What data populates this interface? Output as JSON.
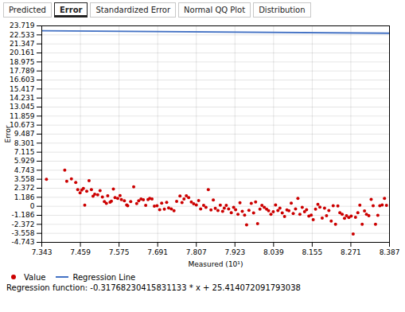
{
  "chart_data": {
    "type": "scatter",
    "tabs": [
      "Predicted",
      "Error",
      "Standardized Error",
      "Normal QQ Plot",
      "Distribution"
    ],
    "active_tab": "Error",
    "xlabel": "Measured (10¹)",
    "ylabel": "Error",
    "xlim": [
      7.343,
      8.387
    ],
    "ylim": [
      -4.743,
      23.719
    ],
    "xticks": [
      7.343,
      7.459,
      7.575,
      7.691,
      7.807,
      7.923,
      8.039,
      8.155,
      8.271,
      8.387
    ],
    "yticks": [
      -4.743,
      -3.558,
      -2.372,
      -1.186,
      0,
      1.186,
      2.372,
      3.558,
      4.743,
      5.929,
      7.115,
      8.301,
      9.487,
      10.673,
      11.859,
      13.045,
      14.231,
      15.417,
      16.603,
      17.789,
      18.975,
      20.161,
      21.347,
      22.533,
      23.719
    ],
    "grid": true,
    "legend": "lower left",
    "series": [
      {
        "name": "Value",
        "type": "scatter",
        "color": "#cc0000",
        "x": [
          7.357,
          7.412,
          7.418,
          7.432,
          7.445,
          7.451,
          7.458,
          7.463,
          7.468,
          7.472,
          7.478,
          7.485,
          7.492,
          7.497,
          7.502,
          7.511,
          7.518,
          7.525,
          7.531,
          7.537,
          7.541,
          7.548,
          7.552,
          7.558,
          7.563,
          7.571,
          7.578,
          7.582,
          7.591,
          7.598,
          7.601,
          7.61,
          7.619,
          7.628,
          7.634,
          7.641,
          7.648,
          7.655,
          7.662,
          7.667,
          7.674,
          7.681,
          7.689,
          7.697,
          7.703,
          7.711,
          7.718,
          7.724,
          7.732,
          7.74,
          7.748,
          7.758,
          7.764,
          7.77,
          7.777,
          7.784,
          7.792,
          7.799,
          7.807,
          7.814,
          7.82,
          7.829,
          7.836,
          7.843,
          7.851,
          7.858,
          7.864,
          7.872,
          7.879,
          7.886,
          7.891,
          7.897,
          7.904,
          7.912,
          7.919,
          7.925,
          7.932,
          7.938,
          7.945,
          7.952,
          7.958,
          7.965,
          7.972,
          7.979,
          7.985,
          7.991,
          7.998,
          8.004,
          8.011,
          8.018,
          8.024,
          8.031,
          8.038,
          8.045,
          8.052,
          8.058,
          8.065,
          8.072,
          8.079,
          8.085,
          8.092,
          8.098,
          8.105,
          8.112,
          8.118,
          8.125,
          8.132,
          8.138,
          8.145,
          8.152,
          8.158,
          8.165,
          8.172,
          8.178,
          8.185,
          8.192,
          8.198,
          8.205,
          8.212,
          8.218,
          8.225,
          8.232,
          8.238,
          8.245,
          8.252,
          8.258,
          8.265,
          8.272,
          8.278,
          8.285,
          8.292,
          8.298,
          8.305,
          8.312,
          8.318,
          8.325,
          8.332,
          8.338,
          8.345,
          8.352,
          8.358,
          8.365,
          8.372,
          8.378
        ],
        "values": [
          3.558,
          4.743,
          3.28,
          3.6,
          3.13,
          2.18,
          1.76,
          2.15,
          2.35,
          0.15,
          1.98,
          3.36,
          2.18,
          1.32,
          1.58,
          1.52,
          2.05,
          1.22,
          0.62,
          0.38,
          1.38,
          0.55,
          0.68,
          2.28,
          1.15,
          1.05,
          1.4,
          0.88,
          0.72,
          0.18,
          0.08,
          0.62,
          2.55,
          0.35,
          0.72,
          0.95,
          0.85,
          0.12,
          0.88,
          1.05,
          0.95,
          0.02,
          0.08,
          -0.45,
          0.42,
          -0.38,
          0.52,
          -0.22,
          -0.35,
          -0.58,
          0.65,
          1.35,
          0.48,
          0.95,
          1.38,
          1.15,
          0.58,
          0.32,
          0.18,
          0.75,
          -0.35,
          0.12,
          -0.15,
          2.18,
          -0.48,
          0.82,
          -0.28,
          -0.55,
          0.15,
          -0.65,
          -0.25,
          0.12,
          -0.35,
          -0.85,
          -0.15,
          -0.45,
          -1.05,
          0.45,
          -0.65,
          -1.15,
          -2.45,
          -0.52,
          0.38,
          -0.88,
          0.58,
          -2.28,
          -0.38,
          0.12,
          -0.15,
          -0.38,
          -0.58,
          -1.05,
          -0.72,
          0.18,
          -0.55,
          -0.25,
          -0.88,
          -1.35,
          -0.48,
          -0.58,
          0.42,
          -0.95,
          -0.35,
          1.05,
          -1.05,
          -0.15,
          -0.72,
          -0.45,
          -1.28,
          -1.15,
          -1.75,
          -0.38,
          0.25,
          -0.12,
          -1.55,
          -0.25,
          -1.25,
          -0.55,
          -1.95,
          0.08,
          -2.35,
          0.05,
          -0.85,
          -1.05,
          -1.58,
          -1.25,
          -1.48,
          -1.28,
          -3.65,
          -1.45,
          -0.85,
          0.15,
          -2.35,
          -0.62,
          -1.05,
          -1.25,
          0.92,
          0.08,
          -2.35,
          -1.18,
          0.08,
          0.18,
          1.05,
          0.12
        ]
      },
      {
        "name": "Regression Line",
        "type": "line",
        "color": "#4472c4",
        "x": [
          7.343,
          8.387
        ],
        "values": [
          23.081330932358558,
          22.74967060681728
        ]
      }
    ],
    "annotations": [
      "Regression function: -0.31768230415831133 * x + 25.414072091793038"
    ]
  }
}
